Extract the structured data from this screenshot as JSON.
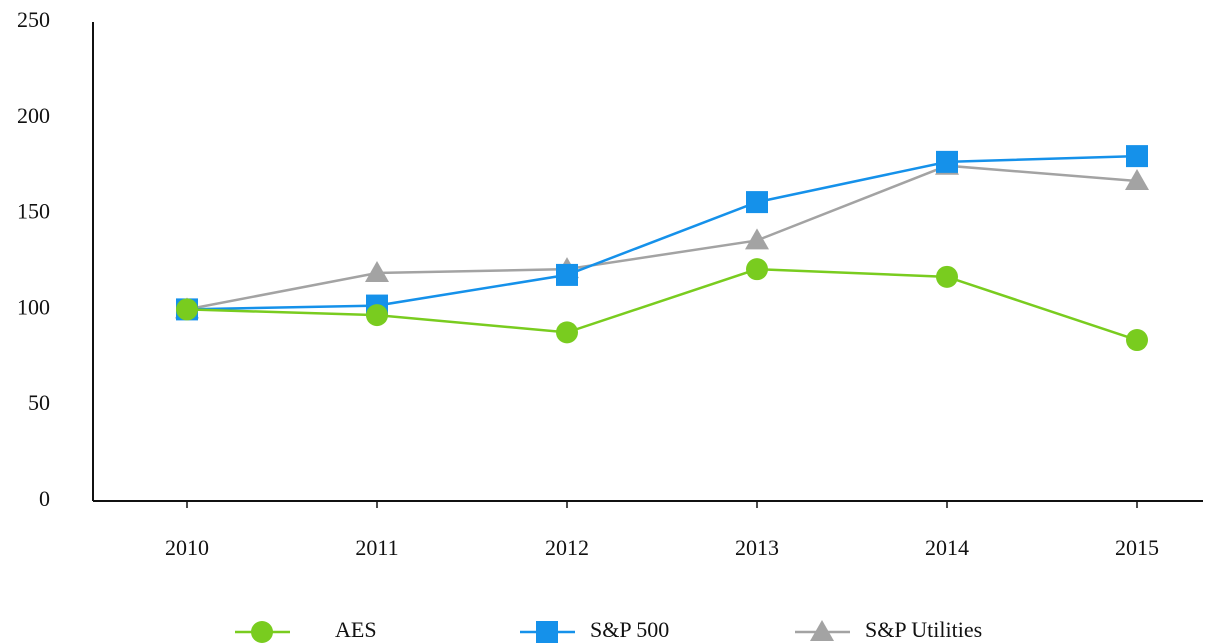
{
  "chart_data": {
    "type": "line",
    "categories": [
      "2010",
      "2011",
      "2012",
      "2013",
      "2014",
      "2015"
    ],
    "series": [
      {
        "name": "AES",
        "color": "#79cc1f",
        "marker": "circle",
        "values": [
          100,
          97,
          88,
          121,
          117,
          84
        ]
      },
      {
        "name": "S&P 500",
        "color": "#1591ea",
        "marker": "square",
        "values": [
          100,
          102,
          118,
          156,
          177,
          180
        ]
      },
      {
        "name": "S&P Utilities",
        "color": "#a3a3a3",
        "marker": "triangle",
        "values": [
          100,
          119,
          121,
          136,
          175,
          167
        ]
      }
    ],
    "ylim": [
      0,
      250
    ],
    "yticks": [
      0,
      50,
      100,
      150,
      200,
      250
    ],
    "grid": false,
    "legend": "bottom"
  }
}
